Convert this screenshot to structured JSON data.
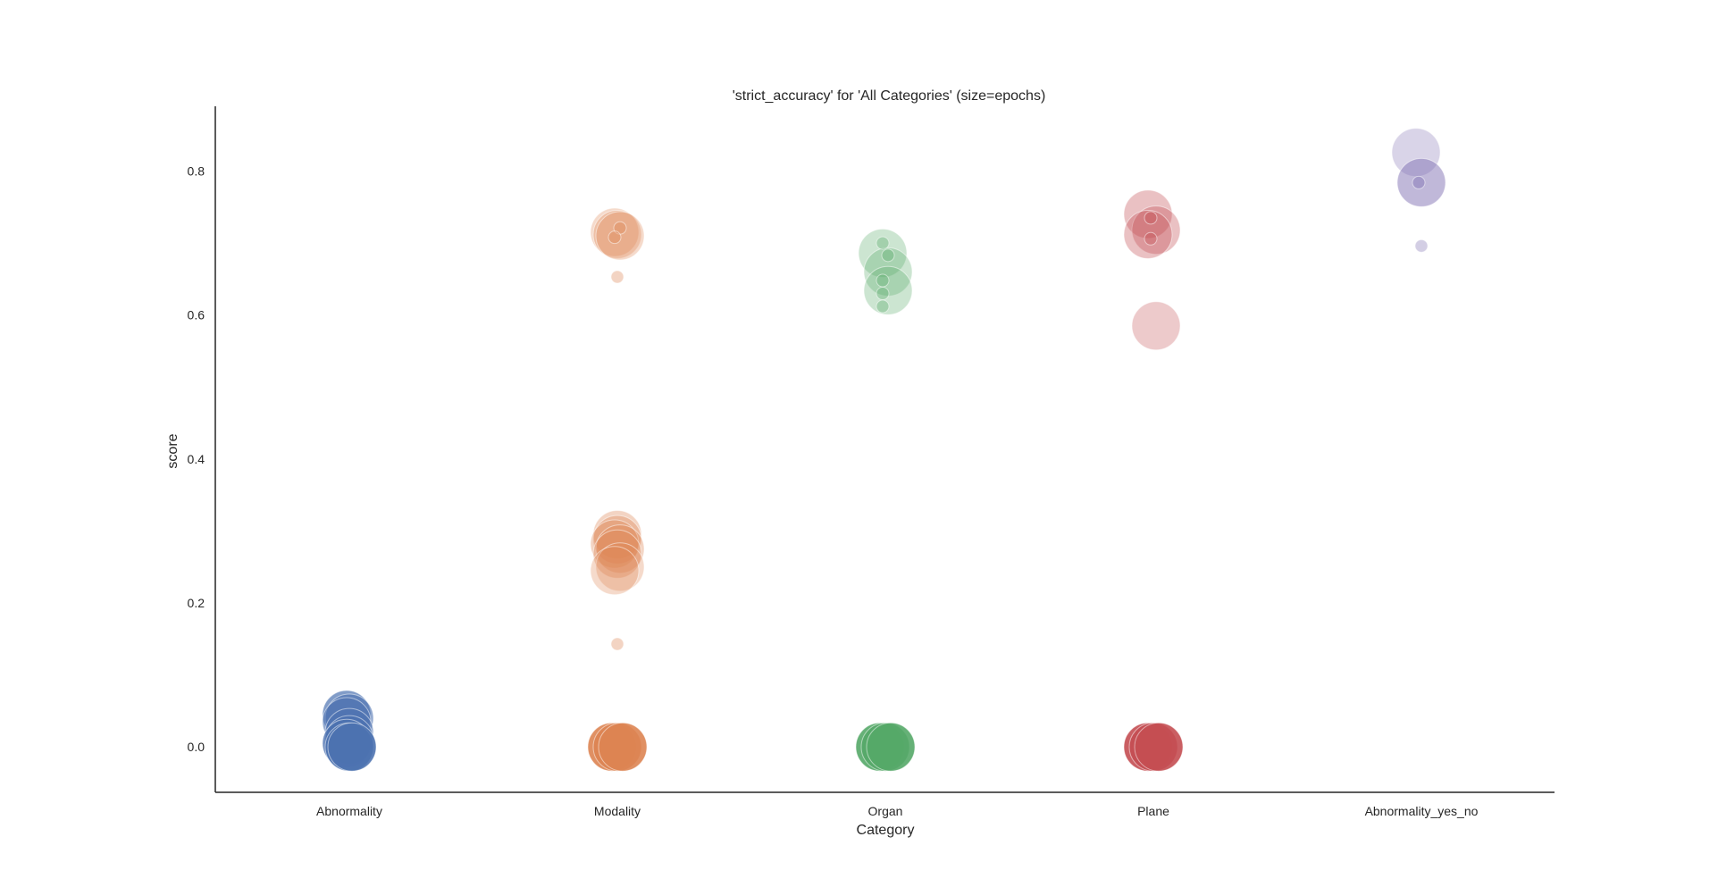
{
  "chart_data": {
    "type": "scatter",
    "title": "'strict_accuracy' for 'All Categories' (size=epochs)",
    "xlabel": "Category",
    "ylabel": "score",
    "categories": [
      "Abnormality",
      "Modality",
      "Organ",
      "Plane",
      "Abnormality_yes_no"
    ],
    "ylim": [
      -0.063,
      0.89
    ],
    "yticks": [
      "0.0",
      "0.2",
      "0.4",
      "0.6",
      "0.8"
    ],
    "grid": false,
    "legend": "none",
    "colors": [
      "#4c72b0",
      "#dd8452",
      "#55a868",
      "#c44e52",
      "#8172b3"
    ],
    "size_encoding": "epochs",
    "series": [
      {
        "category": "Abnormality",
        "points": [
          {
            "x": -0.01,
            "y": 0.045,
            "size": 3,
            "alpha": 0.7
          },
          {
            "x": 0.0,
            "y": 0.04,
            "size": 3,
            "alpha": 0.6
          },
          {
            "x": -0.01,
            "y": 0.035,
            "size": 3,
            "alpha": 0.6
          },
          {
            "x": 0.0,
            "y": 0.02,
            "size": 3,
            "alpha": 0.6
          },
          {
            "x": 0.0,
            "y": 0.01,
            "size": 3,
            "alpha": 0.7
          },
          {
            "x": -0.01,
            "y": 0.005,
            "size": 3,
            "alpha": 0.8
          },
          {
            "x": 0.0,
            "y": 0.0,
            "size": 3,
            "alpha": 0.9
          },
          {
            "x": 0.01,
            "y": 0.0,
            "size": 3,
            "alpha": 0.9
          }
        ]
      },
      {
        "category": "Modality",
        "points": [
          {
            "x": -0.01,
            "y": 0.715,
            "size": 3,
            "alpha": 0.3
          },
          {
            "x": 0.0,
            "y": 0.712,
            "size": 3,
            "alpha": 0.3
          },
          {
            "x": 0.01,
            "y": 0.71,
            "size": 3,
            "alpha": 0.3
          },
          {
            "x": 0.01,
            "y": 0.721,
            "size": 1,
            "alpha": 0.35
          },
          {
            "x": -0.01,
            "y": 0.708,
            "size": 1,
            "alpha": 0.35
          },
          {
            "x": 0.0,
            "y": 0.653,
            "size": 1,
            "alpha": 0.35
          },
          {
            "x": 0.0,
            "y": 0.295,
            "size": 3,
            "alpha": 0.35
          },
          {
            "x": 0.0,
            "y": 0.288,
            "size": 3,
            "alpha": 0.35
          },
          {
            "x": -0.01,
            "y": 0.282,
            "size": 3,
            "alpha": 0.35
          },
          {
            "x": 0.01,
            "y": 0.275,
            "size": 3,
            "alpha": 0.35
          },
          {
            "x": 0.0,
            "y": 0.268,
            "size": 3,
            "alpha": 0.35
          },
          {
            "x": 0.01,
            "y": 0.25,
            "size": 3,
            "alpha": 0.3
          },
          {
            "x": -0.01,
            "y": 0.245,
            "size": 3,
            "alpha": 0.3
          },
          {
            "x": 0.0,
            "y": 0.143,
            "size": 1,
            "alpha": 0.35
          },
          {
            "x": -0.02,
            "y": 0.0,
            "size": 3,
            "alpha": 0.9
          },
          {
            "x": 0.0,
            "y": 0.0,
            "size": 3,
            "alpha": 0.9
          },
          {
            "x": 0.02,
            "y": 0.0,
            "size": 3,
            "alpha": 0.9
          }
        ]
      },
      {
        "category": "Organ",
        "points": [
          {
            "x": -0.01,
            "y": 0.686,
            "size": 3,
            "alpha": 0.3
          },
          {
            "x": 0.01,
            "y": 0.66,
            "size": 3,
            "alpha": 0.3
          },
          {
            "x": 0.01,
            "y": 0.634,
            "size": 3,
            "alpha": 0.3
          },
          {
            "x": -0.01,
            "y": 0.7,
            "size": 1,
            "alpha": 0.35
          },
          {
            "x": 0.01,
            "y": 0.683,
            "size": 1,
            "alpha": 0.35
          },
          {
            "x": -0.01,
            "y": 0.648,
            "size": 1,
            "alpha": 0.35
          },
          {
            "x": -0.01,
            "y": 0.63,
            "size": 1,
            "alpha": 0.35
          },
          {
            "x": -0.01,
            "y": 0.612,
            "size": 1,
            "alpha": 0.35
          },
          {
            "x": -0.02,
            "y": 0.0,
            "size": 3,
            "alpha": 0.9
          },
          {
            "x": 0.0,
            "y": 0.0,
            "size": 3,
            "alpha": 0.9
          },
          {
            "x": 0.02,
            "y": 0.0,
            "size": 3,
            "alpha": 0.9
          }
        ]
      },
      {
        "category": "Plane",
        "points": [
          {
            "x": -0.02,
            "y": 0.74,
            "size": 3,
            "alpha": 0.35
          },
          {
            "x": 0.01,
            "y": 0.718,
            "size": 3,
            "alpha": 0.35
          },
          {
            "x": -0.02,
            "y": 0.712,
            "size": 3,
            "alpha": 0.35
          },
          {
            "x": -0.01,
            "y": 0.735,
            "size": 1,
            "alpha": 0.35
          },
          {
            "x": -0.01,
            "y": 0.706,
            "size": 1,
            "alpha": 0.35
          },
          {
            "x": 0.01,
            "y": 0.585,
            "size": 3,
            "alpha": 0.3
          },
          {
            "x": -0.02,
            "y": 0.0,
            "size": 3,
            "alpha": 0.9
          },
          {
            "x": 0.0,
            "y": 0.0,
            "size": 3,
            "alpha": 0.9
          },
          {
            "x": 0.02,
            "y": 0.0,
            "size": 3,
            "alpha": 0.9
          }
        ]
      },
      {
        "category": "Abnormality_yes_no",
        "points": [
          {
            "x": -0.02,
            "y": 0.826,
            "size": 3,
            "alpha": 0.3
          },
          {
            "x": 0.0,
            "y": 0.784,
            "size": 3,
            "alpha": 0.5
          },
          {
            "x": -0.01,
            "y": 0.784,
            "size": 1,
            "alpha": 0.45
          },
          {
            "x": 0.0,
            "y": 0.696,
            "size": 1,
            "alpha": 0.35
          }
        ]
      }
    ]
  }
}
